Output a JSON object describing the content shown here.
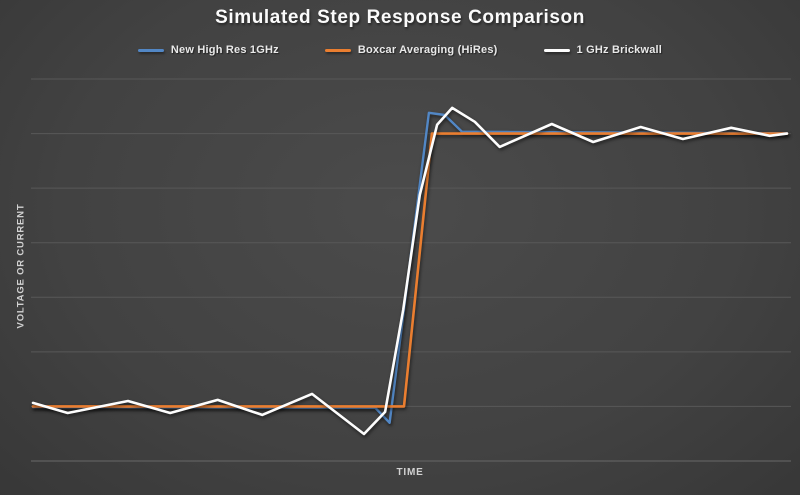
{
  "title": "Simulated Step Response Comparison",
  "axes": {
    "x_label": "TIME",
    "y_label": "VOLTAGE OR CURRENT"
  },
  "legend": [
    {
      "label": "New High Res 1GHz",
      "color": "#5287c5"
    },
    {
      "label": "Boxcar Averaging (HiRes)",
      "color": "#ea7e30"
    },
    {
      "label": "1 GHz Brickwall",
      "color": "#fdfdfd"
    }
  ],
  "chart_data": {
    "type": "line",
    "title": "Simulated Step Response Comparison",
    "xlabel": "TIME",
    "ylabel": "VOLTAGE OR CURRENT",
    "xlim": [
      0,
      100
    ],
    "ylim": [
      -0.2,
      1.2
    ],
    "gridline_values": [
      0,
      0.2,
      0.4,
      0.6,
      0.8,
      1.0,
      1.2
    ],
    "grid": "horizontal-only",
    "legend_position": "top",
    "x_units": "time (arbitrary units, no tick labels shown)",
    "y_units": "normalized step amplitude (no tick labels shown)",
    "series": [
      {
        "name": "New High Res 1GHz",
        "color": "#5287c5",
        "stroke_width": 2.4,
        "points": [
          [
            0,
            -0.002
          ],
          [
            45.4,
            -0.005
          ],
          [
            47.3,
            -0.06
          ],
          [
            52.5,
            1.076
          ],
          [
            54.6,
            1.068
          ],
          [
            56.9,
            1.007
          ],
          [
            100,
            1.001
          ]
        ]
      },
      {
        "name": "Boxcar Averaging (HiRes)",
        "color": "#ea7e30",
        "stroke_width": 2.6,
        "points": [
          [
            0,
            0.0
          ],
          [
            49.2,
            0.0
          ],
          [
            52.9,
            1.0
          ],
          [
            100,
            1.0
          ]
        ]
      },
      {
        "name": "1 GHz Brickwall",
        "color": "#fdfdfd",
        "stroke_width": 2.6,
        "points": [
          [
            0,
            0.013
          ],
          [
            4.6,
            -0.024
          ],
          [
            12.6,
            0.02
          ],
          [
            18.2,
            -0.024
          ],
          [
            24.5,
            0.024
          ],
          [
            30.4,
            -0.031
          ],
          [
            37.0,
            0.046
          ],
          [
            43.9,
            -0.101
          ],
          [
            46.7,
            -0.02
          ],
          [
            49.1,
            0.354
          ],
          [
            51.3,
            0.775
          ],
          [
            53.6,
            1.032
          ],
          [
            55.6,
            1.094
          ],
          [
            58.6,
            1.043
          ],
          [
            61.9,
            0.951
          ],
          [
            68.8,
            1.035
          ],
          [
            74.3,
            0.969
          ],
          [
            80.6,
            1.024
          ],
          [
            86.2,
            0.98
          ],
          [
            92.6,
            1.021
          ],
          [
            97.7,
            0.992
          ],
          [
            100,
            1.0
          ]
        ]
      }
    ]
  }
}
